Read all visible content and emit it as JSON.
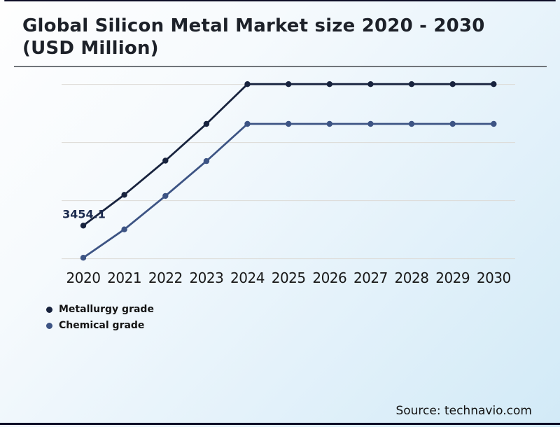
{
  "title": {
    "text": "Global Silicon Metal Market size 2020 - 2030 (USD Million)"
  },
  "source": {
    "text": "Source: technavio.com"
  },
  "legend": {
    "items": [
      {
        "label": "Metallurgy grade",
        "color": "#18233e"
      },
      {
        "label": "Chemical grade",
        "color": "#3d5484"
      }
    ]
  },
  "colors": {
    "background_start": "#fefefe",
    "background_end": "#d2eaf7",
    "card_border": "#0d0d26",
    "title_text": "#1d2129",
    "title_separator": "#70757a",
    "gridline": "#dcdad5",
    "axis_label": "#191919",
    "metallurgy_line": "#18233e",
    "chemical_line": "#3d5484",
    "data_label": "#1b2a4e"
  },
  "chart_data": {
    "type": "line",
    "title": "Global Silicon Metal Market size 2020 - 2030 (USD Million)",
    "categories": [
      "2020",
      "2021",
      "2022",
      "2023",
      "2024",
      "2025",
      "2026",
      "2027",
      "2028",
      "2029",
      "2030"
    ],
    "series": [
      {
        "name": "Metallurgy grade",
        "color": "#18233e",
        "values": [
          3454.1,
          4780,
          6250,
          7830,
          9540,
          9540,
          9540,
          9540,
          9540,
          9540,
          9540
        ],
        "point_labels": [
          {
            "index": 0,
            "text": "3454.1"
          }
        ]
      },
      {
        "name": "Chemical grade",
        "color": "#3d5484",
        "values": [
          2070,
          3290,
          4730,
          6230,
          7830,
          7830,
          7830,
          7830,
          7830,
          7830,
          7830
        ]
      }
    ],
    "xlabel": "",
    "ylabel": "",
    "ylim": [
      1500,
      10300
    ],
    "gridlines": [
      2030,
      4530,
      7030,
      9530
    ],
    "grid": true,
    "y_axis_labels_visible": false,
    "legend_position": "bottom-left"
  }
}
